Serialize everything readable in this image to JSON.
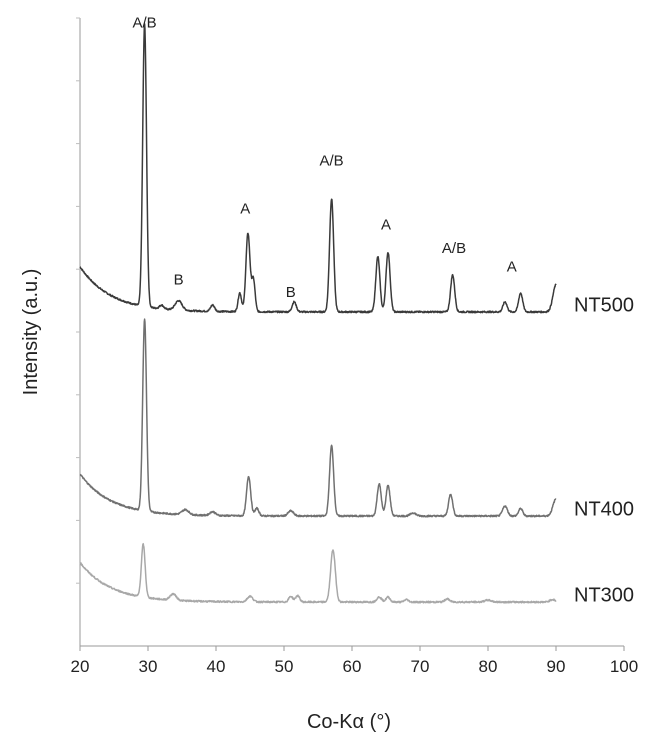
{
  "chart_data": {
    "type": "line",
    "title": "",
    "xlabel": "Co-Kα (°)",
    "ylabel": "Intensity (a.u.)",
    "xlim": [
      20,
      100
    ],
    "x_ticks": [
      "20",
      "30",
      "40",
      "50",
      "60",
      "70",
      "80",
      "90",
      "100"
    ],
    "ylim": [
      0,
      100
    ],
    "y_ticks_labeled": false,
    "grid": false,
    "legend": "none",
    "series": [
      {
        "name": "NT500",
        "color": "#3a3a3a",
        "baseline": 53.2,
        "slope_start": 60.4,
        "peaks": [
          {
            "x": 29.5,
            "h": 44.9,
            "w": 0.28
          },
          {
            "x": 32.0,
            "h": 0.6,
            "w": 0.3
          },
          {
            "x": 34.5,
            "h": 1.5,
            "w": 0.5
          },
          {
            "x": 39.5,
            "h": 1.0,
            "w": 0.3
          },
          {
            "x": 43.5,
            "h": 3.0,
            "w": 0.25
          },
          {
            "x": 44.7,
            "h": 12.5,
            "w": 0.3
          },
          {
            "x": 45.5,
            "h": 5.1,
            "w": 0.25
          },
          {
            "x": 51.5,
            "h": 1.6,
            "w": 0.3
          },
          {
            "x": 57.0,
            "h": 18.0,
            "w": 0.3
          },
          {
            "x": 63.8,
            "h": 8.8,
            "w": 0.3
          },
          {
            "x": 65.3,
            "h": 9.5,
            "w": 0.3
          },
          {
            "x": 74.8,
            "h": 5.9,
            "w": 0.3
          },
          {
            "x": 82.5,
            "h": 1.6,
            "w": 0.3
          },
          {
            "x": 84.8,
            "h": 3.0,
            "w": 0.3
          },
          {
            "x": 90.0,
            "h": 4.3,
            "w": 0.45
          }
        ]
      },
      {
        "name": "NT400",
        "color": "#707070",
        "baseline": 20.7,
        "slope_start": 27.4,
        "peaks": [
          {
            "x": 29.5,
            "h": 30.5,
            "w": 0.28
          },
          {
            "x": 35.5,
            "h": 0.8,
            "w": 0.5
          },
          {
            "x": 39.5,
            "h": 0.6,
            "w": 0.4
          },
          {
            "x": 44.8,
            "h": 6.3,
            "w": 0.3
          },
          {
            "x": 46.0,
            "h": 1.2,
            "w": 0.3
          },
          {
            "x": 51.0,
            "h": 0.8,
            "w": 0.4
          },
          {
            "x": 57.0,
            "h": 11.2,
            "w": 0.3
          },
          {
            "x": 64.0,
            "h": 5.1,
            "w": 0.3
          },
          {
            "x": 65.3,
            "h": 4.9,
            "w": 0.3
          },
          {
            "x": 69.0,
            "h": 0.5,
            "w": 0.4
          },
          {
            "x": 74.5,
            "h": 3.5,
            "w": 0.3
          },
          {
            "x": 82.5,
            "h": 1.6,
            "w": 0.35
          },
          {
            "x": 84.8,
            "h": 1.2,
            "w": 0.3
          },
          {
            "x": 90.0,
            "h": 2.7,
            "w": 0.45
          }
        ]
      },
      {
        "name": "NT300",
        "color": "#a8a8a8",
        "baseline": 7.0,
        "slope_start": 13.3,
        "peaks": [
          {
            "x": 29.3,
            "h": 8.4,
            "w": 0.28
          },
          {
            "x": 33.7,
            "h": 1.0,
            "w": 0.45
          },
          {
            "x": 45.0,
            "h": 0.9,
            "w": 0.4
          },
          {
            "x": 51.0,
            "h": 0.9,
            "w": 0.3
          },
          {
            "x": 52.0,
            "h": 1.0,
            "w": 0.3
          },
          {
            "x": 57.2,
            "h": 8.3,
            "w": 0.35
          },
          {
            "x": 64.0,
            "h": 0.8,
            "w": 0.35
          },
          {
            "x": 65.3,
            "h": 0.8,
            "w": 0.3
          },
          {
            "x": 68.0,
            "h": 0.4,
            "w": 0.3
          },
          {
            "x": 74.0,
            "h": 0.5,
            "w": 0.35
          },
          {
            "x": 80.0,
            "h": 0.3,
            "w": 0.5
          },
          {
            "x": 89.5,
            "h": 0.4,
            "w": 0.4
          }
        ]
      }
    ],
    "annotations": [
      {
        "text": "A/B",
        "x": 29.5,
        "y": 98.5
      },
      {
        "text": "B",
        "x": 34.5,
        "y": 57.6
      },
      {
        "text": "A",
        "x": 44.3,
        "y": 68.9
      },
      {
        "text": "B",
        "x": 51.0,
        "y": 55.6
      },
      {
        "text": "A/B",
        "x": 57.0,
        "y": 76.5
      },
      {
        "text": "A",
        "x": 65.0,
        "y": 66.3
      },
      {
        "text": "A/B",
        "x": 75.0,
        "y": 62.6
      },
      {
        "text": "A",
        "x": 83.5,
        "y": 59.6
      }
    ]
  }
}
